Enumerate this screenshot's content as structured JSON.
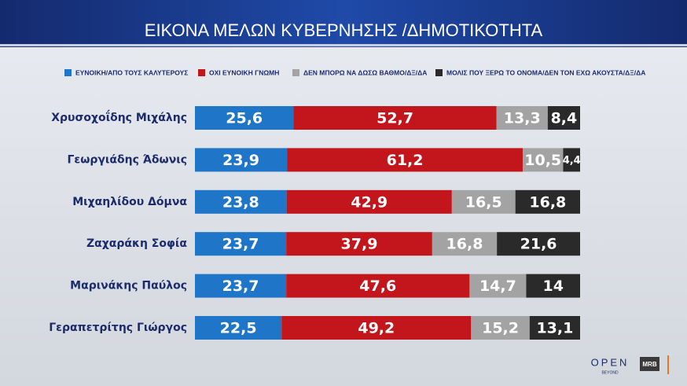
{
  "chart_data": {
    "type": "stacked-bar-horizontal",
    "title": "ΕΙΚΟΝΑ ΜΕΛΩΝ ΚΥΒΕΡΝΗΣΗΣ /ΔΗΜΟΤΙΚΟΤΗΤΑ",
    "categories": [
      "Χρυσοχοΐδης Μιχάλης",
      "Γεωργιάδης Άδωνις",
      "Μιχαηλίδου Δόμνα",
      "Ζαχαράκη Σοφία",
      "Μαρινάκης Παύλος",
      "Γεραπετρίτης Γιώργος"
    ],
    "xlim": [
      0,
      100
    ],
    "series": [
      {
        "name": "ΕΥΝΟΙΚΗ/ΑΠΟ ΤΟΥΣ ΚΑΛΥΤΕΡΟΥΣ",
        "color": "#1f76c8",
        "values": [
          25.6,
          23.9,
          23.8,
          23.7,
          23.7,
          22.5
        ],
        "value_labels": [
          "25,6",
          "23,9",
          "23,8",
          "23,7",
          "23,7",
          "22,5"
        ]
      },
      {
        "name": "ΟΧΙ ΕΥΝΟΙΚΗ ΓΝΩΜΗ",
        "color": "#c3151c",
        "values": [
          52.7,
          61.2,
          42.9,
          37.9,
          47.6,
          49.2
        ],
        "value_labels": [
          "52,7",
          "61,2",
          "42,9",
          "37,9",
          "47,6",
          "49,2"
        ]
      },
      {
        "name": "ΔΕΝ ΜΠΟΡΩ ΝΑ ΔΩΣΩ ΒΑΘΜΟ/ΔΞ/ΔΑ",
        "color": "#a3a3a3",
        "values": [
          13.3,
          10.5,
          16.5,
          16.8,
          14.7,
          15.2
        ],
        "value_labels": [
          "13,3",
          "10,5",
          "16,5",
          "16,8",
          "14,7",
          "15,2"
        ]
      },
      {
        "name": "ΜΟΛΙΣ ΠΟΥ ΞΕΡΩ ΤΟ ΟΝΟΜΑ/ΔΕΝ ΤΟΝ ΕΧΩ ΑΚΟΥΣΤΑ/ΔΞ/ΔΑ",
        "color": "#2a2a2a",
        "values": [
          8.4,
          4.4,
          16.8,
          21.6,
          14,
          13.1
        ],
        "value_labels": [
          "8,4",
          "4,4",
          "16,8",
          "21,6",
          "14",
          "13,1"
        ]
      }
    ]
  },
  "branding": {
    "open": "OPEN",
    "beyond": "BEYOND",
    "mrb": "MRB"
  }
}
